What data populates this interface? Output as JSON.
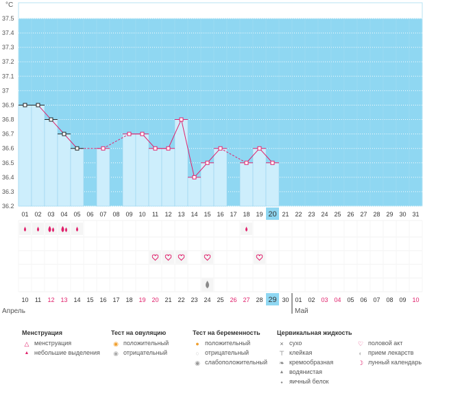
{
  "chart_data": {
    "type": "line",
    "unit_label": "°C",
    "ylim": [
      36.2,
      37.6
    ],
    "y_ticks": [
      "37.5",
      "37.4",
      "37.3",
      "37.2",
      "37.1",
      "37",
      "36.9",
      "36.8",
      "36.7",
      "36.6",
      "36.5",
      "36.4",
      "36.3",
      "36.2"
    ],
    "cycle_days": [
      "01",
      "02",
      "03",
      "04",
      "05",
      "06",
      "07",
      "08",
      "09",
      "10",
      "11",
      "12",
      "13",
      "14",
      "15",
      "16",
      "17",
      "18",
      "19",
      "20",
      "21",
      "22",
      "23",
      "24",
      "25",
      "26",
      "27",
      "28",
      "29",
      "30",
      "31"
    ],
    "temperatures": [
      36.9,
      36.9,
      36.8,
      36.7,
      36.6,
      null,
      36.6,
      null,
      36.7,
      36.7,
      36.6,
      36.6,
      36.8,
      36.4,
      36.5,
      36.6,
      null,
      36.5,
      36.6,
      36.5,
      null,
      null,
      null,
      null,
      null,
      null,
      null,
      null,
      null,
      null,
      null
    ],
    "dashed_segments": [
      [
        5,
        7
      ],
      [
        7,
        9
      ],
      [
        16,
        18
      ]
    ],
    "black_marker_days": [
      "01",
      "02",
      "03",
      "04",
      "05"
    ],
    "highlighted_cycle_day": "20",
    "calendar_dates": [
      "10",
      "11",
      "12",
      "13",
      "14",
      "15",
      "16",
      "17",
      "18",
      "19",
      "20",
      "21",
      "22",
      "23",
      "24",
      "25",
      "26",
      "27",
      "28",
      "29",
      "30",
      "01",
      "02",
      "03",
      "04",
      "05",
      "06",
      "07",
      "08",
      "09",
      "10"
    ],
    "weekend_dates_index": [
      2,
      3,
      9,
      10,
      16,
      17,
      23,
      24,
      30
    ],
    "highlighted_calendar_date": "29",
    "month_labels": [
      "Апрель",
      "Май"
    ],
    "menstruation_markers": [
      "small",
      "small",
      "heavy",
      "heavy",
      "small",
      "",
      "",
      "",
      "",
      "",
      "",
      "",
      "",
      "",
      "",
      "",
      "",
      "small",
      "",
      "",
      "",
      "",
      "",
      "",
      "",
      "",
      "",
      "",
      "",
      "",
      ""
    ],
    "intercourse_days": [
      "11",
      "12",
      "13",
      "15",
      "19"
    ],
    "cervical_day": "15"
  },
  "legend": {
    "menstruation": {
      "title": "Менструация",
      "items": [
        "менструация",
        "небольшие выделения"
      ]
    },
    "ovulation": {
      "title": "Тест на овуляцию",
      "items": [
        "положительный",
        "отрицательный"
      ]
    },
    "pregnancy": {
      "title": "Тест на беременность",
      "items": [
        "положительный",
        "отрицательный",
        "слабоположительный"
      ]
    },
    "cervical": {
      "title": "Цервикальная жидкость",
      "items": [
        "сухо",
        "клейкая",
        "кремообразная",
        "водянистая",
        "яичный белок"
      ]
    },
    "other": {
      "items": [
        "половой акт",
        "прием лекарств",
        "лунный календарь"
      ]
    }
  },
  "colors": {
    "chart_bg": "#8fd7f2",
    "column": "#cdeefc",
    "line": "#e0206b",
    "weekend": "#e0206b",
    "highlight": "#8fd7f2"
  }
}
